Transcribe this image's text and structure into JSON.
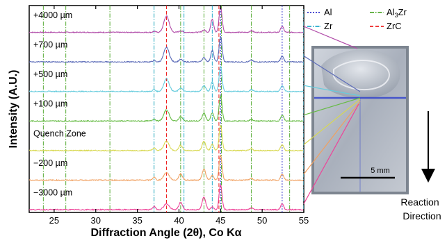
{
  "chart_data": {
    "type": "line",
    "xlabel": "Diffraction Angle (2θ), Co Kα",
    "ylabel": "Intensity (A.U.)",
    "xlim": [
      22,
      55
    ],
    "x_ticks": [
      25,
      30,
      35,
      40,
      45,
      50,
      55
    ],
    "grid": false,
    "legend_position": "top-right",
    "series": [
      {
        "name": "+4000 µm",
        "color": "#b04aa8"
      },
      {
        "name": "+700 µm",
        "color": "#5b6bb8"
      },
      {
        "name": "+500 µm",
        "color": "#66ccdd"
      },
      {
        "name": "+100 µm",
        "color": "#66bb44"
      },
      {
        "name": "Quench Zone",
        "color": "#d8d850"
      },
      {
        "name": "−200 µm",
        "color": "#f0a060"
      },
      {
        "name": "−3000 µm",
        "color": "#ee4499"
      }
    ],
    "reference_phases": [
      {
        "name": "Al",
        "style": "dotted",
        "color": "#3333cc",
        "positions": [
          45.0,
          52.4
        ]
      },
      {
        "name": "Al3Zr",
        "style": "dashdot",
        "color": "#55aa33",
        "positions": [
          23.7,
          26.4,
          31.7,
          37.0,
          40.2,
          43.0,
          45.1,
          48.7,
          53.3
        ]
      },
      {
        "name": "Zr",
        "style": "dashdot",
        "color": "#22aacc",
        "positions": [
          37.0,
          40.6,
          44.0,
          55.0
        ]
      },
      {
        "name": "ZrC",
        "style": "dashed",
        "color": "#ee2222",
        "positions": [
          38.5,
          44.8
        ]
      }
    ],
    "scale_bar_label": "5 mm",
    "arrow_label": [
      "Reaction",
      "Direction"
    ]
  }
}
